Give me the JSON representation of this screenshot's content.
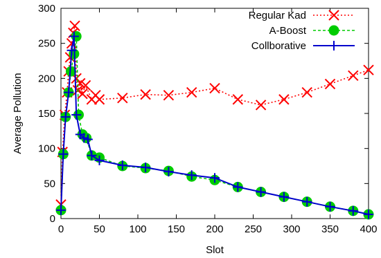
{
  "chart_data": {
    "type": "line",
    "xlabel": "Slot",
    "ylabel": "Average Pollution",
    "xlim": [
      0,
      400
    ],
    "ylim": [
      0,
      300
    ],
    "xticks": [
      0,
      50,
      100,
      150,
      200,
      250,
      300,
      350,
      400
    ],
    "yticks": [
      0,
      50,
      100,
      150,
      200,
      250,
      300
    ],
    "grid": false,
    "legend_position": "top-right",
    "series": [
      {
        "name": "Regular Kad",
        "color": "#ff0000",
        "line_style": "dotted",
        "marker": "x",
        "x": [
          0,
          2,
          5,
          8,
          10,
          12,
          14,
          16,
          18,
          20,
          22,
          25,
          28,
          32,
          40,
          45,
          50,
          80,
          110,
          140,
          170,
          200,
          230,
          260,
          290,
          320,
          350,
          380,
          400
        ],
        "y": [
          20,
          95,
          148,
          180,
          210,
          230,
          250,
          265,
          275,
          200,
          183,
          193,
          178,
          190,
          170,
          176,
          170,
          172,
          177,
          176,
          180,
          186,
          170,
          162,
          170,
          180,
          192,
          204,
          212
        ]
      },
      {
        "name": "A-Boost",
        "color": "#00cc00",
        "line_style": "dashed",
        "marker": "circle",
        "x": [
          0,
          3,
          6,
          10,
          13,
          17,
          20,
          23,
          28,
          33,
          40,
          50,
          80,
          110,
          140,
          170,
          200,
          230,
          260,
          290,
          320,
          350,
          380,
          400
        ],
        "y": [
          12,
          92,
          145,
          180,
          210,
          235,
          260,
          148,
          120,
          115,
          90,
          87,
          75,
          72,
          68,
          60,
          55,
          45,
          38,
          31,
          24,
          17,
          11,
          6
        ]
      },
      {
        "name": "Collborative",
        "color": "#0000cc",
        "line_style": "solid",
        "marker": "plus",
        "x": [
          0,
          3,
          6,
          10,
          14,
          17,
          20,
          25,
          30,
          35,
          40,
          50,
          80,
          110,
          140,
          170,
          200,
          230,
          260,
          290,
          320,
          350,
          380,
          400
        ],
        "y": [
          12,
          92,
          145,
          180,
          240,
          260,
          148,
          120,
          115,
          113,
          90,
          83,
          76,
          73,
          67,
          62,
          58,
          45,
          38,
          31,
          24,
          17,
          11,
          6
        ]
      }
    ]
  }
}
